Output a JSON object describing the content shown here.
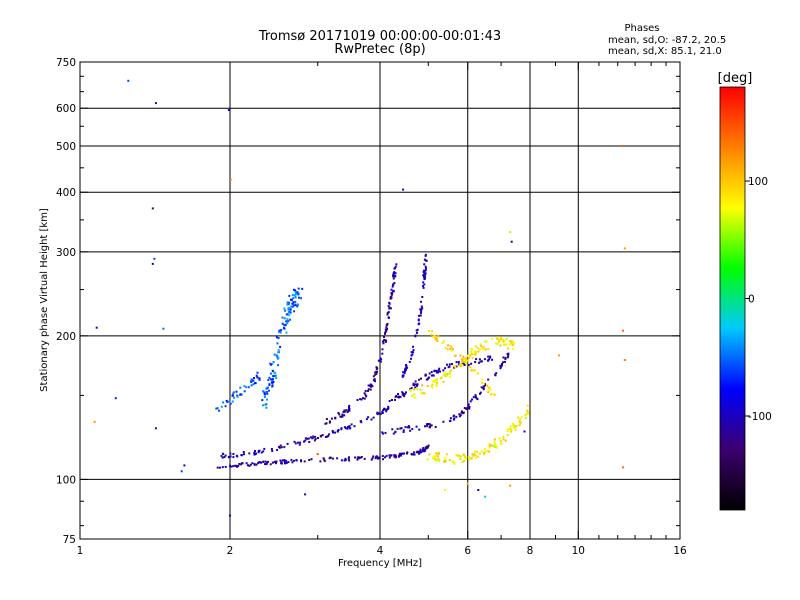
{
  "chart_data": {
    "type": "scatter",
    "title": "Tromsø 20171019 00:00:00-00:01:43",
    "subtitle": "RwPretec (8p)",
    "xlabel": "Frequency [MHz]",
    "ylabel": "Stationary phase Virtual Height [km]",
    "x_scale": "log",
    "y_scale": "log",
    "xlim": [
      1,
      16
    ],
    "ylim": [
      75,
      750
    ],
    "x_ticks": [
      1,
      2,
      4,
      6,
      8,
      10,
      16
    ],
    "x_tick_labels": [
      "1",
      "2",
      "4",
      "6",
      "8",
      "10",
      "16"
    ],
    "x_grid": [
      2,
      4,
      6,
      8,
      10
    ],
    "y_ticks": [
      75,
      100,
      200,
      300,
      400,
      500,
      600,
      750
    ],
    "y_tick_labels": [
      "75",
      "100",
      "200",
      "300",
      "400",
      "500",
      "600",
      "750"
    ],
    "y_grid": [
      100,
      200,
      300,
      400,
      500,
      600
    ],
    "grid": true,
    "stats": {
      "heading": "Phases",
      "line_o": "mean, sd,O: -87.2, 20.5",
      "line_x": "mean, sd,X: 85.1, 21.0"
    },
    "colorbar": {
      "unit": "[deg]",
      "min": -180,
      "max": 180,
      "ticks": [
        100,
        0,
        -100
      ],
      "tick_labels": [
        "100",
        "0",
        "-100"
      ],
      "colors": [
        "#000000",
        "#3c006e",
        "#0000ff",
        "#00c8ff",
        "#00ff00",
        "#ffff00",
        "#ff8000",
        "#ff0000"
      ]
    },
    "traces": [
      {
        "segments": [
          [
            1.88,
            106
          ],
          [
            2.3,
            108
          ],
          [
            3.0,
            110
          ],
          [
            4.0,
            111
          ],
          [
            4.8,
            114
          ],
          [
            5.0,
            117
          ]
        ],
        "phase": -110,
        "spread": 0.008,
        "n": 170
      },
      {
        "segments": [
          [
            1.92,
            112
          ],
          [
            2.3,
            114
          ],
          [
            2.8,
            120
          ],
          [
            3.3,
            126
          ],
          [
            3.8,
            134
          ],
          [
            4.2,
            142
          ]
        ],
        "phase": -105,
        "spread": 0.01,
        "n": 110
      },
      {
        "segments": [
          [
            3.0,
            130
          ],
          [
            3.4,
            138
          ],
          [
            3.7,
            148
          ],
          [
            3.9,
            162
          ],
          [
            4.05,
            185
          ],
          [
            4.15,
            215
          ],
          [
            4.25,
            255
          ],
          [
            4.3,
            282
          ]
        ],
        "phase": -112,
        "spread": 0.012,
        "n": 130
      },
      {
        "segments": [
          [
            4.0,
            125
          ],
          [
            4.6,
            128
          ],
          [
            5.2,
            130
          ],
          [
            5.8,
            137
          ],
          [
            6.3,
            150
          ],
          [
            6.8,
            168
          ],
          [
            7.3,
            185
          ]
        ],
        "phase": -110,
        "spread": 0.012,
        "n": 90
      },
      {
        "segments": [
          [
            4.2,
            145
          ],
          [
            4.6,
            155
          ],
          [
            5.0,
            165
          ],
          [
            5.4,
            172
          ],
          [
            6.0,
            176
          ],
          [
            6.8,
            180
          ]
        ],
        "phase": -108,
        "spread": 0.012,
        "n": 90
      },
      {
        "segments": [
          [
            4.4,
            160
          ],
          [
            4.6,
            180
          ],
          [
            4.75,
            205
          ],
          [
            4.85,
            230
          ],
          [
            4.9,
            262
          ],
          [
            4.95,
            296
          ]
        ],
        "phase": -100,
        "spread": 0.012,
        "n": 70
      },
      {
        "segments": [
          [
            4.6,
            150
          ],
          [
            5.2,
            160
          ],
          [
            5.8,
            175
          ],
          [
            6.3,
            188
          ],
          [
            6.9,
            195
          ],
          [
            7.5,
            190
          ]
        ],
        "phase": 85,
        "spread": 0.02,
        "n": 120
      },
      {
        "segments": [
          [
            5.0,
            112
          ],
          [
            5.6,
            110
          ],
          [
            6.2,
            112
          ],
          [
            6.8,
            118
          ],
          [
            7.4,
            128
          ],
          [
            8.0,
            140
          ]
        ],
        "phase": 82,
        "spread": 0.02,
        "n": 120
      },
      {
        "segments": [
          [
            5.0,
            205
          ],
          [
            5.3,
            195
          ],
          [
            5.8,
            180
          ],
          [
            6.3,
            165
          ],
          [
            6.8,
            150
          ]
        ],
        "phase": 90,
        "spread": 0.015,
        "n": 50
      },
      {
        "segments": [
          [
            2.35,
            145
          ],
          [
            2.45,
            170
          ],
          [
            2.55,
            205
          ],
          [
            2.65,
            235
          ],
          [
            2.75,
            245
          ]
        ],
        "phase": -50,
        "spread": 0.035,
        "n": 130
      },
      {
        "segments": [
          [
            1.88,
            140
          ],
          [
            2.05,
            150
          ],
          [
            2.2,
            160
          ],
          [
            2.3,
            165
          ]
        ],
        "phase": -55,
        "spread": 0.02,
        "n": 45
      }
    ],
    "points": [
      {
        "x": 1.25,
        "y": 685,
        "phase": -60
      },
      {
        "x": 1.42,
        "y": 615,
        "phase": -110
      },
      {
        "x": 1.99,
        "y": 595,
        "phase": -90
      },
      {
        "x": 1.4,
        "y": 370,
        "phase": -110
      },
      {
        "x": 1.41,
        "y": 290,
        "phase": -60
      },
      {
        "x": 1.4,
        "y": 283,
        "phase": -110
      },
      {
        "x": 1.47,
        "y": 207,
        "phase": -50
      },
      {
        "x": 1.08,
        "y": 208,
        "phase": -100
      },
      {
        "x": 1.07,
        "y": 132,
        "phase": 120
      },
      {
        "x": 1.18,
        "y": 148,
        "phase": -70
      },
      {
        "x": 1.42,
        "y": 128,
        "phase": -120
      },
      {
        "x": 1.62,
        "y": 107,
        "phase": -90
      },
      {
        "x": 1.6,
        "y": 104,
        "phase": -60
      },
      {
        "x": 2.0,
        "y": 84,
        "phase": -100
      },
      {
        "x": 2.01,
        "y": 425,
        "phase": 110
      },
      {
        "x": 2.83,
        "y": 93,
        "phase": -120
      },
      {
        "x": 4.45,
        "y": 405,
        "phase": -110
      },
      {
        "x": 7.3,
        "y": 330,
        "phase": 60
      },
      {
        "x": 7.35,
        "y": 315,
        "phase": -130
      },
      {
        "x": 9.15,
        "y": 182,
        "phase": 120
      },
      {
        "x": 12.3,
        "y": 500,
        "phase": 140
      },
      {
        "x": 12.4,
        "y": 305,
        "phase": 120
      },
      {
        "x": 12.3,
        "y": 205,
        "phase": 140
      },
      {
        "x": 12.4,
        "y": 178,
        "phase": 130
      },
      {
        "x": 12.3,
        "y": 106,
        "phase": 140
      },
      {
        "x": 7.3,
        "y": 97,
        "phase": 120
      },
      {
        "x": 6.3,
        "y": 95,
        "phase": -110
      },
      {
        "x": 6.5,
        "y": 92,
        "phase": -20
      },
      {
        "x": 5.4,
        "y": 95,
        "phase": 80
      },
      {
        "x": 7.8,
        "y": 126,
        "phase": -100
      },
      {
        "x": 3.0,
        "y": 113,
        "phase": 150
      },
      {
        "x": 6.0,
        "y": 98,
        "phase": 100
      }
    ]
  }
}
